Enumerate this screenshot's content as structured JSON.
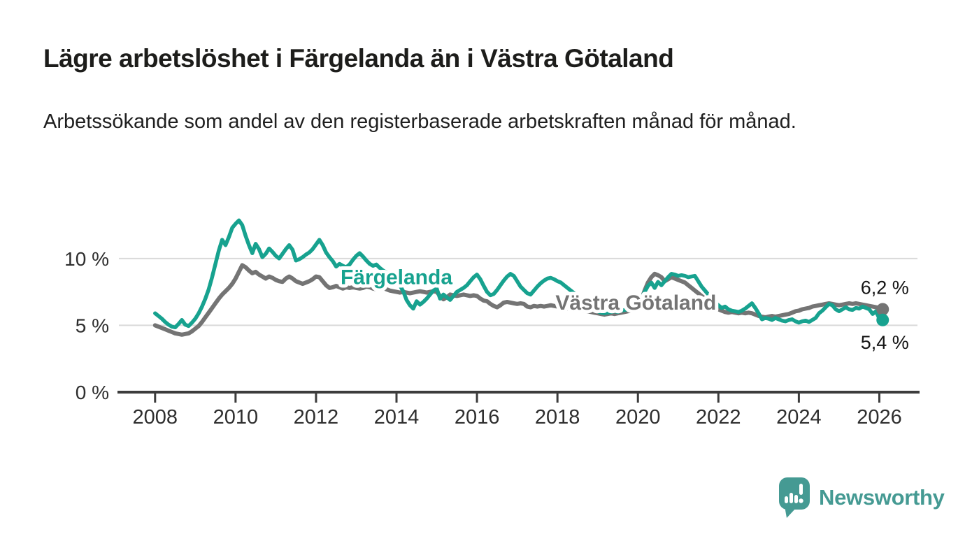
{
  "header": {
    "title": "Lägre arbetslöshet i Färgelanda än i Västra Götaland",
    "subtitle": "Arbetssökande som andel av den registerbaserade arbetskraften månad för månad."
  },
  "branding": {
    "logo_text": "Newsworthy",
    "logo_color": "#459a93",
    "logo_icon": "speech-bubble-bar-chart-exclamation"
  },
  "chart_data": {
    "type": "line",
    "unit": "%",
    "grid": "horizontal",
    "xlim": [
      2007.1,
      2027.0
    ],
    "ylim": [
      0,
      13.6
    ],
    "x_ticks": [
      {
        "value": 2008,
        "label": "2008"
      },
      {
        "value": 2010,
        "label": "2010"
      },
      {
        "value": 2012,
        "label": "2012"
      },
      {
        "value": 2014,
        "label": "2014"
      },
      {
        "value": 2016,
        "label": "2016"
      },
      {
        "value": 2018,
        "label": "2018"
      },
      {
        "value": 2020,
        "label": "2020"
      },
      {
        "value": 2022,
        "label": "2022"
      },
      {
        "value": 2024,
        "label": "2024"
      },
      {
        "value": 2026,
        "label": "2026"
      }
    ],
    "y_ticks": [
      {
        "value": 0,
        "label": "0 %"
      },
      {
        "value": 5,
        "label": "5 %"
      },
      {
        "value": 10,
        "label": "10 %"
      }
    ],
    "series": [
      {
        "name": "Västra Götaland",
        "color": "#747474",
        "line_width": 6,
        "start_year": 2008,
        "points_per_year": 12,
        "end_label": "6,2 %",
        "end_label_side": "above",
        "end_value": 6.2,
        "inline_label": {
          "x": 2019.95,
          "y": 6.7
        },
        "values": [
          5.0,
          4.9,
          4.8,
          4.7,
          4.6,
          4.5,
          4.4,
          4.35,
          4.3,
          4.35,
          4.4,
          4.55,
          4.75,
          4.95,
          5.25,
          5.6,
          5.95,
          6.3,
          6.65,
          7.0,
          7.3,
          7.55,
          7.8,
          8.1,
          8.5,
          9.0,
          9.5,
          9.35,
          9.1,
          8.9,
          9.0,
          8.8,
          8.65,
          8.5,
          8.65,
          8.55,
          8.4,
          8.3,
          8.25,
          8.5,
          8.65,
          8.5,
          8.3,
          8.2,
          8.1,
          8.2,
          8.3,
          8.45,
          8.65,
          8.6,
          8.3,
          8.0,
          7.8,
          7.85,
          7.95,
          7.85,
          7.75,
          7.85,
          7.8,
          7.85,
          7.8,
          7.75,
          7.8,
          7.9,
          7.85,
          7.75,
          7.7,
          7.75,
          7.8,
          7.7,
          7.6,
          7.55,
          7.5,
          7.45,
          7.5,
          7.45,
          7.4,
          7.45,
          7.5,
          7.55,
          7.5,
          7.45,
          7.5,
          7.55,
          7.5,
          7.2,
          6.95,
          7.1,
          7.3,
          7.25,
          7.2,
          7.25,
          7.3,
          7.25,
          7.2,
          7.25,
          7.2,
          7.0,
          6.85,
          6.8,
          6.6,
          6.45,
          6.35,
          6.5,
          6.7,
          6.75,
          6.7,
          6.65,
          6.6,
          6.65,
          6.6,
          6.4,
          6.35,
          6.45,
          6.4,
          6.45,
          6.4,
          6.45,
          6.5,
          6.45,
          6.4,
          6.35,
          6.3,
          6.25,
          6.3,
          6.25,
          6.2,
          6.15,
          6.1,
          6.05,
          6.0,
          5.95,
          5.9,
          5.85,
          5.8,
          5.85,
          5.9,
          5.85,
          5.9,
          5.95,
          6.0,
          6.05,
          6.1,
          6.2,
          6.4,
          6.9,
          7.6,
          8.2,
          8.6,
          8.85,
          8.75,
          8.6,
          8.3,
          8.45,
          8.6,
          8.5,
          8.4,
          8.3,
          8.2,
          8.0,
          7.8,
          7.6,
          7.4,
          7.2,
          7.0,
          6.8,
          6.6,
          6.4,
          6.2,
          6.1,
          6.0,
          5.95,
          6.0,
          5.95,
          5.9,
          5.95,
          5.9,
          5.95,
          5.9,
          5.8,
          5.7,
          5.65,
          5.6,
          5.65,
          5.7,
          5.65,
          5.7,
          5.75,
          5.8,
          5.85,
          5.95,
          6.05,
          6.1,
          6.2,
          6.25,
          6.3,
          6.4,
          6.45,
          6.5,
          6.55,
          6.6,
          6.65,
          6.6,
          6.55,
          6.5,
          6.55,
          6.6,
          6.65,
          6.6,
          6.65,
          6.6,
          6.55,
          6.5,
          6.45,
          6.4,
          6.35,
          6.3,
          6.2
        ]
      },
      {
        "name": "Färgelanda",
        "color": "#17a28f",
        "line_width": 5.5,
        "start_year": 2008,
        "points_per_year": 12,
        "end_label": "5,4 %",
        "end_label_side": "below",
        "end_value": 5.4,
        "inline_label": {
          "x": 2014.0,
          "y": 8.6
        },
        "values": [
          5.9,
          5.7,
          5.5,
          5.25,
          5.05,
          4.9,
          4.85,
          5.1,
          5.4,
          5.05,
          4.95,
          5.2,
          5.5,
          5.9,
          6.4,
          7.0,
          7.7,
          8.6,
          9.6,
          10.6,
          11.4,
          11.0,
          11.6,
          12.3,
          12.6,
          12.85,
          12.5,
          11.7,
          11.0,
          10.4,
          11.1,
          10.7,
          10.1,
          10.35,
          10.75,
          10.5,
          10.2,
          10.0,
          10.35,
          10.7,
          11.0,
          10.65,
          9.85,
          9.95,
          10.1,
          10.3,
          10.45,
          10.7,
          11.05,
          11.4,
          11.0,
          10.45,
          10.1,
          9.8,
          9.4,
          9.6,
          9.45,
          9.35,
          9.55,
          9.9,
          10.2,
          10.4,
          10.15,
          9.85,
          9.6,
          9.45,
          9.55,
          9.3,
          9.1,
          8.95,
          8.8,
          8.6,
          8.35,
          8.0,
          7.55,
          6.9,
          6.5,
          6.25,
          6.8,
          6.55,
          6.75,
          7.0,
          7.3,
          7.6,
          7.75,
          7.0,
          7.3,
          7.1,
          6.9,
          7.2,
          7.5,
          7.65,
          7.8,
          8.0,
          8.3,
          8.6,
          8.8,
          8.45,
          7.95,
          7.5,
          7.25,
          7.35,
          7.65,
          8.0,
          8.35,
          8.65,
          8.85,
          8.7,
          8.3,
          7.9,
          7.65,
          7.4,
          7.3,
          7.6,
          7.9,
          8.15,
          8.35,
          8.5,
          8.55,
          8.45,
          8.3,
          8.2,
          8.0,
          7.8,
          7.6,
          7.4,
          7.2,
          7.0,
          6.8,
          6.6,
          6.4,
          6.2,
          6.05,
          5.95,
          5.9,
          5.95,
          6.0,
          6.05,
          6.0,
          6.1,
          6.15,
          6.2,
          6.25,
          6.4,
          6.6,
          7.0,
          7.5,
          7.95,
          8.2,
          7.8,
          8.25,
          8.0,
          8.3,
          8.6,
          8.85,
          8.8,
          8.7,
          8.75,
          8.7,
          8.6,
          8.65,
          8.7,
          8.3,
          7.9,
          7.6,
          7.3,
          7.0,
          6.7,
          6.5,
          6.3,
          6.4,
          6.2,
          6.1,
          6.05,
          6.0,
          6.1,
          6.25,
          6.45,
          6.65,
          6.3,
          5.9,
          5.45,
          5.55,
          5.5,
          5.4,
          5.55,
          5.45,
          5.35,
          5.3,
          5.4,
          5.45,
          5.3,
          5.2,
          5.3,
          5.35,
          5.25,
          5.4,
          5.55,
          5.9,
          6.1,
          6.35,
          6.6,
          6.5,
          6.2,
          6.05,
          6.2,
          6.35,
          6.2,
          6.15,
          6.3,
          6.25,
          6.4,
          6.3,
          6.2,
          5.85,
          6.05,
          5.5,
          5.4
        ]
      }
    ]
  }
}
